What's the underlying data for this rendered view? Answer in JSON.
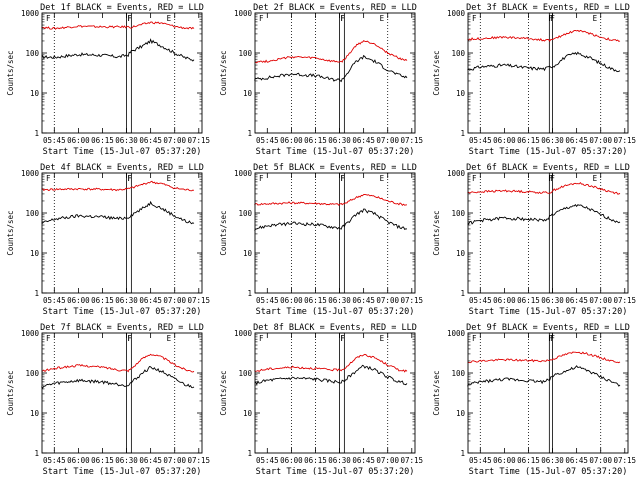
{
  "colors": {
    "events": "#000000",
    "lld": "#e00000",
    "background": "#ffffff",
    "axes": "#000000"
  },
  "chart_data": [
    {
      "type": "line",
      "title": "Det 1f BLACK = Events, RED = LLD",
      "ylabel": "Counts/sec",
      "xlabel": "Start Time (15-Jul-07 05:37:20)",
      "yscale": "log",
      "ylim": [
        1,
        1000
      ],
      "yticks": [
        "1",
        "10",
        "100",
        "1000"
      ],
      "xticks": [
        "05:45",
        "06:00",
        "06:15",
        "06:30",
        "06:45",
        "07:00",
        "07:15"
      ],
      "dotted_lines": [
        "05:45",
        "07:00"
      ],
      "boxes": [
        [
          "06:30",
          "06:33"
        ]
      ],
      "markers": [
        "F",
        "F",
        "F",
        "E"
      ],
      "series": [
        {
          "color": "#000000",
          "x": [
            "05:37",
            "05:45",
            "06:00",
            "06:15",
            "06:25",
            "06:31",
            "06:33",
            "06:40",
            "06:45",
            "06:52",
            "07:00",
            "07:07",
            "07:12"
          ],
          "y": [
            80,
            78,
            92,
            88,
            80,
            90,
            110,
            150,
            200,
            150,
            100,
            75,
            68
          ]
        },
        {
          "color": "#e00000",
          "x": [
            "05:37",
            "05:45",
            "06:00",
            "06:15",
            "06:25",
            "06:31",
            "06:33",
            "06:40",
            "06:45",
            "06:52",
            "07:00",
            "07:07",
            "07:12"
          ],
          "y": [
            440,
            410,
            470,
            450,
            450,
            450,
            440,
            520,
            580,
            560,
            460,
            420,
            410
          ]
        }
      ]
    },
    {
      "type": "line",
      "title": "Det 2f BLACK = Events, RED = LLD",
      "ylabel": "Counts/sec",
      "xlabel": "Start Time (15-Jul-07 05:37:20)",
      "yscale": "log",
      "ylim": [
        1,
        1000
      ],
      "yticks": [
        "1",
        "10",
        "100",
        "1000"
      ],
      "xticks": [
        "05:45",
        "06:00",
        "06:15",
        "06:30",
        "06:45",
        "07:00",
        "07:15"
      ],
      "dotted_lines": [
        "06:00",
        "06:15",
        "07:00"
      ],
      "boxes": [
        [
          "06:30",
          "06:33"
        ]
      ],
      "markers": [
        "F",
        "F",
        "F",
        "E"
      ],
      "series": [
        {
          "color": "#000000",
          "x": [
            "05:37",
            "05:45",
            "06:00",
            "06:15",
            "06:25",
            "06:31",
            "06:33",
            "06:40",
            "06:45",
            "06:52",
            "07:00",
            "07:07",
            "07:12"
          ],
          "y": [
            22,
            24,
            30,
            27,
            22,
            21,
            25,
            60,
            80,
            62,
            38,
            28,
            24
          ]
        },
        {
          "color": "#e00000",
          "x": [
            "05:37",
            "05:45",
            "06:00",
            "06:15",
            "06:25",
            "06:31",
            "06:33",
            "06:40",
            "06:45",
            "06:52",
            "07:00",
            "07:07",
            "07:12"
          ],
          "y": [
            60,
            62,
            80,
            75,
            62,
            60,
            68,
            150,
            200,
            170,
            100,
            75,
            65
          ]
        }
      ]
    },
    {
      "type": "line",
      "title": "Det 3f BLACK = Events, RED = LLD",
      "ylabel": "Counts/sec",
      "xlabel": "Start Time (15-Jul-07 05:37:20)",
      "yscale": "log",
      "ylim": [
        1,
        1000
      ],
      "yticks": [
        "1",
        "10",
        "100",
        "1000"
      ],
      "xticks": [
        "05:45",
        "06:00",
        "06:15",
        "06:30",
        "06:45",
        "07:00",
        "07:15"
      ],
      "dotted_lines": [
        "05:45",
        "06:15",
        "07:00"
      ],
      "boxes": [
        [
          "06:28",
          "06:30"
        ]
      ],
      "markers": [
        "F",
        "F",
        "F",
        "E"
      ],
      "series": [
        {
          "color": "#000000",
          "x": [
            "05:37",
            "05:45",
            "06:00",
            "06:15",
            "06:25",
            "06:29",
            "06:31",
            "06:38",
            "06:45",
            "06:52",
            "07:00",
            "07:07",
            "07:12"
          ],
          "y": [
            38,
            45,
            50,
            42,
            40,
            46,
            48,
            80,
            100,
            80,
            55,
            40,
            36
          ]
        },
        {
          "color": "#e00000",
          "x": [
            "05:37",
            "05:45",
            "06:00",
            "06:15",
            "06:25",
            "06:29",
            "06:31",
            "06:38",
            "06:45",
            "06:52",
            "07:00",
            "07:07",
            "07:12"
          ],
          "y": [
            220,
            230,
            250,
            230,
            210,
            210,
            220,
            300,
            370,
            320,
            250,
            210,
            200
          ]
        }
      ]
    },
    {
      "type": "line",
      "title": "Det 4f BLACK = Events, RED = LLD",
      "ylabel": "Counts/sec",
      "xlabel": "Start Time (15-Jul-07 05:37:20)",
      "yscale": "log",
      "ylim": [
        1,
        1000
      ],
      "yticks": [
        "1",
        "10",
        "100",
        "1000"
      ],
      "xticks": [
        "05:45",
        "06:00",
        "06:15",
        "06:30",
        "06:45",
        "07:00",
        "07:15"
      ],
      "dotted_lines": [
        "05:45",
        "07:00"
      ],
      "boxes": [
        [
          "06:30",
          "06:33"
        ]
      ],
      "markers": [
        "F",
        "F",
        "F",
        "E"
      ],
      "series": [
        {
          "color": "#000000",
          "x": [
            "05:37",
            "05:45",
            "06:00",
            "06:15",
            "06:25",
            "06:31",
            "06:33",
            "06:40",
            "06:45",
            "06:52",
            "07:00",
            "07:07",
            "07:12"
          ],
          "y": [
            55,
            70,
            85,
            80,
            72,
            78,
            90,
            130,
            180,
            130,
            85,
            62,
            55
          ]
        },
        {
          "color": "#e00000",
          "x": [
            "05:37",
            "05:45",
            "06:00",
            "06:15",
            "06:25",
            "06:31",
            "06:33",
            "06:40",
            "06:45",
            "06:52",
            "07:00",
            "07:07",
            "07:12"
          ],
          "y": [
            380,
            390,
            400,
            390,
            380,
            400,
            420,
            520,
            600,
            540,
            420,
            380,
            370
          ]
        }
      ]
    },
    {
      "type": "line",
      "title": "Det 5f BLACK = Events, RED = LLD",
      "ylabel": "Counts/sec",
      "xlabel": "Start Time (15-Jul-07 05:37:20)",
      "yscale": "log",
      "ylim": [
        1,
        1000
      ],
      "yticks": [
        "1",
        "10",
        "100",
        "1000"
      ],
      "xticks": [
        "05:45",
        "06:00",
        "06:15",
        "06:30",
        "06:45",
        "07:00",
        "07:15"
      ],
      "dotted_lines": [
        "06:00",
        "06:15",
        "07:00"
      ],
      "boxes": [
        [
          "06:30",
          "06:33"
        ]
      ],
      "markers": [
        "F",
        "F",
        "F",
        "E"
      ],
      "series": [
        {
          "color": "#000000",
          "x": [
            "05:37",
            "05:45",
            "06:00",
            "06:15",
            "06:25",
            "06:31",
            "06:33",
            "06:40",
            "06:45",
            "06:52",
            "07:00",
            "07:07",
            "07:12"
          ],
          "y": [
            40,
            48,
            55,
            52,
            45,
            42,
            48,
            90,
            120,
            95,
            60,
            45,
            40
          ]
        },
        {
          "color": "#e00000",
          "x": [
            "05:37",
            "05:45",
            "06:00",
            "06:15",
            "06:25",
            "06:31",
            "06:33",
            "06:40",
            "06:45",
            "06:52",
            "07:00",
            "07:07",
            "07:12"
          ],
          "y": [
            165,
            170,
            180,
            175,
            165,
            165,
            170,
            240,
            290,
            260,
            200,
            170,
            160
          ]
        }
      ]
    },
    {
      "type": "line",
      "title": "Det 6f BLACK = Events, RED = LLD",
      "ylabel": "Counts/sec",
      "xlabel": "Start Time (15-Jul-07 05:37:20)",
      "yscale": "log",
      "ylim": [
        1,
        1000
      ],
      "yticks": [
        "1",
        "10",
        "100",
        "1000"
      ],
      "xticks": [
        "05:45",
        "06:00",
        "06:15",
        "06:30",
        "06:45",
        "07:00",
        "07:15"
      ],
      "dotted_lines": [
        "05:45",
        "06:15",
        "07:00"
      ],
      "boxes": [
        [
          "06:28",
          "06:30"
        ]
      ],
      "markers": [
        "F",
        "F",
        "F",
        "E"
      ],
      "series": [
        {
          "color": "#000000",
          "x": [
            "05:37",
            "05:45",
            "06:00",
            "06:15",
            "06:25",
            "06:29",
            "06:31",
            "06:38",
            "06:45",
            "06:52",
            "07:00",
            "07:07",
            "07:12"
          ],
          "y": [
            55,
            65,
            75,
            70,
            65,
            85,
            95,
            130,
            160,
            130,
            90,
            68,
            60
          ]
        },
        {
          "color": "#e00000",
          "x": [
            "05:37",
            "05:45",
            "06:00",
            "06:15",
            "06:25",
            "06:29",
            "06:31",
            "06:38",
            "06:45",
            "06:52",
            "07:00",
            "07:07",
            "07:12"
          ],
          "y": [
            320,
            340,
            360,
            340,
            320,
            330,
            380,
            480,
            560,
            500,
            400,
            330,
            310
          ]
        }
      ]
    },
    {
      "type": "line",
      "title": "Det 7f BLACK = Events, RED = LLD",
      "ylabel": "Counts/sec",
      "xlabel": "Start Time (15-Jul-07 05:37:20)",
      "yscale": "log",
      "ylim": [
        1,
        1000
      ],
      "yticks": [
        "1",
        "10",
        "100",
        "1000"
      ],
      "xticks": [
        "05:45",
        "06:00",
        "06:15",
        "06:30",
        "06:45",
        "07:00",
        "07:15"
      ],
      "dotted_lines": [
        "05:45",
        "07:00"
      ],
      "boxes": [
        [
          "06:30",
          "06:33"
        ]
      ],
      "markers": [
        "F",
        "F",
        "F",
        "E"
      ],
      "series": [
        {
          "color": "#000000",
          "x": [
            "05:37",
            "05:45",
            "06:00",
            "06:15",
            "06:25",
            "06:31",
            "06:33",
            "06:40",
            "06:45",
            "06:52",
            "07:00",
            "07:07",
            "07:12"
          ],
          "y": [
            45,
            55,
            65,
            60,
            52,
            50,
            58,
            100,
            140,
            110,
            70,
            50,
            45
          ]
        },
        {
          "color": "#e00000",
          "x": [
            "05:37",
            "05:45",
            "06:00",
            "06:15",
            "06:25",
            "06:31",
            "06:33",
            "06:40",
            "06:45",
            "06:52",
            "07:00",
            "07:07",
            "07:12"
          ],
          "y": [
            110,
            130,
            155,
            140,
            120,
            115,
            130,
            230,
            300,
            250,
            160,
            120,
            110
          ]
        }
      ]
    },
    {
      "type": "line",
      "title": "Det 8f BLACK = Events, RED = LLD",
      "ylabel": "Counts/sec",
      "xlabel": "Start Time (15-Jul-07 05:37:20)",
      "yscale": "log",
      "ylim": [
        1,
        1000
      ],
      "yticks": [
        "1",
        "10",
        "100",
        "1000"
      ],
      "xticks": [
        "05:45",
        "06:00",
        "06:15",
        "06:30",
        "06:45",
        "07:00",
        "07:15"
      ],
      "dotted_lines": [
        "06:00",
        "06:15",
        "07:00"
      ],
      "boxes": [
        [
          "06:30",
          "06:33"
        ]
      ],
      "markers": [
        "F",
        "F",
        "F",
        "E"
      ],
      "series": [
        {
          "color": "#000000",
          "x": [
            "05:37",
            "05:45",
            "06:00",
            "06:15",
            "06:25",
            "06:31",
            "06:33",
            "06:40",
            "06:45",
            "06:52",
            "07:00",
            "07:07",
            "07:12"
          ],
          "y": [
            55,
            65,
            75,
            70,
            62,
            58,
            66,
            110,
            150,
            120,
            80,
            60,
            55
          ]
        },
        {
          "color": "#e00000",
          "x": [
            "05:37",
            "05:45",
            "06:00",
            "06:15",
            "06:25",
            "06:31",
            "06:33",
            "06:40",
            "06:45",
            "06:52",
            "07:00",
            "07:07",
            "07:12"
          ],
          "y": [
            110,
            125,
            140,
            130,
            120,
            120,
            130,
            230,
            290,
            240,
            160,
            120,
            110
          ]
        }
      ]
    },
    {
      "type": "line",
      "title": "Det 9f BLACK = Events, RED = LLD",
      "ylabel": "Counts/sec",
      "xlabel": "Start Time (15-Jul-07 05:37:20)",
      "yscale": "log",
      "ylim": [
        1,
        1000
      ],
      "yticks": [
        "1",
        "10",
        "100",
        "1000"
      ],
      "xticks": [
        "05:45",
        "06:00",
        "06:15",
        "06:30",
        "06:45",
        "07:00",
        "07:15"
      ],
      "dotted_lines": [
        "05:45",
        "06:15",
        "07:00"
      ],
      "boxes": [
        [
          "06:28",
          "06:30"
        ]
      ],
      "markers": [
        "F",
        "F",
        "F",
        "E"
      ],
      "series": [
        {
          "color": "#000000",
          "x": [
            "05:37",
            "05:45",
            "06:00",
            "06:15",
            "06:25",
            "06:29",
            "06:31",
            "06:38",
            "06:45",
            "06:52",
            "07:00",
            "07:07",
            "07:12"
          ],
          "y": [
            50,
            60,
            70,
            65,
            60,
            75,
            90,
            110,
            140,
            115,
            80,
            60,
            50
          ]
        },
        {
          "color": "#e00000",
          "x": [
            "05:37",
            "05:45",
            "06:00",
            "06:15",
            "06:25",
            "06:29",
            "06:31",
            "06:38",
            "06:45",
            "06:52",
            "07:00",
            "07:07",
            "07:12"
          ],
          "y": [
            190,
            200,
            215,
            205,
            200,
            215,
            230,
            290,
            340,
            300,
            240,
            200,
            190
          ]
        }
      ]
    }
  ]
}
